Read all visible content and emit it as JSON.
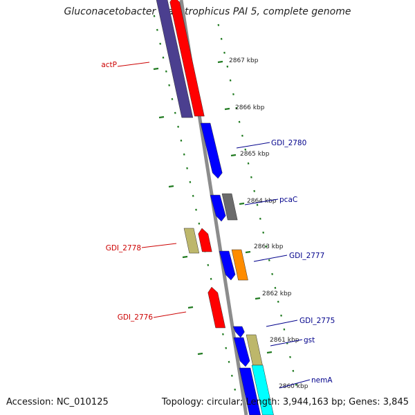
{
  "title": "Gluconacetobacter diazotrophicus PAI 5, complete genome",
  "footer": {
    "accession": "Accession: NC_010125",
    "summary": "Topology: circular; Length: 3,944,163 bp; Genes: 3,845"
  },
  "colors": {
    "backbone": "#8c8c8c",
    "tick": "#1f7a1f",
    "label_reverse": "#cc0000",
    "label_forward": "#00008b",
    "gene_purple": "#4b3f8f",
    "gene_red": "#ff0000",
    "gene_blue": "#0000ff",
    "gene_gray": "#6b6b6b",
    "gene_khaki": "#bdb76b",
    "gene_orange": "#ff8c00",
    "gene_cyan": "#00ffff"
  },
  "scale_labels": [
    "2867 kbp",
    "2866 kbp",
    "2865 kbp",
    "2864 kbp",
    "2863 kbp",
    "2862 kbp",
    "2861 kbp",
    "2860 kbp"
  ],
  "gene_labels": [
    {
      "text": "actP",
      "strand": "reverse"
    },
    {
      "text": "GDI_2780",
      "strand": "forward"
    },
    {
      "text": "pcaC",
      "strand": "forward"
    },
    {
      "text": "GDI_2778",
      "strand": "reverse"
    },
    {
      "text": "GDI_2777",
      "strand": "forward"
    },
    {
      "text": "GDI_2776",
      "strand": "reverse"
    },
    {
      "text": "GDI_2775",
      "strand": "forward"
    },
    {
      "text": "gst",
      "strand": "forward"
    },
    {
      "text": "nemA",
      "strand": "forward"
    }
  ]
}
